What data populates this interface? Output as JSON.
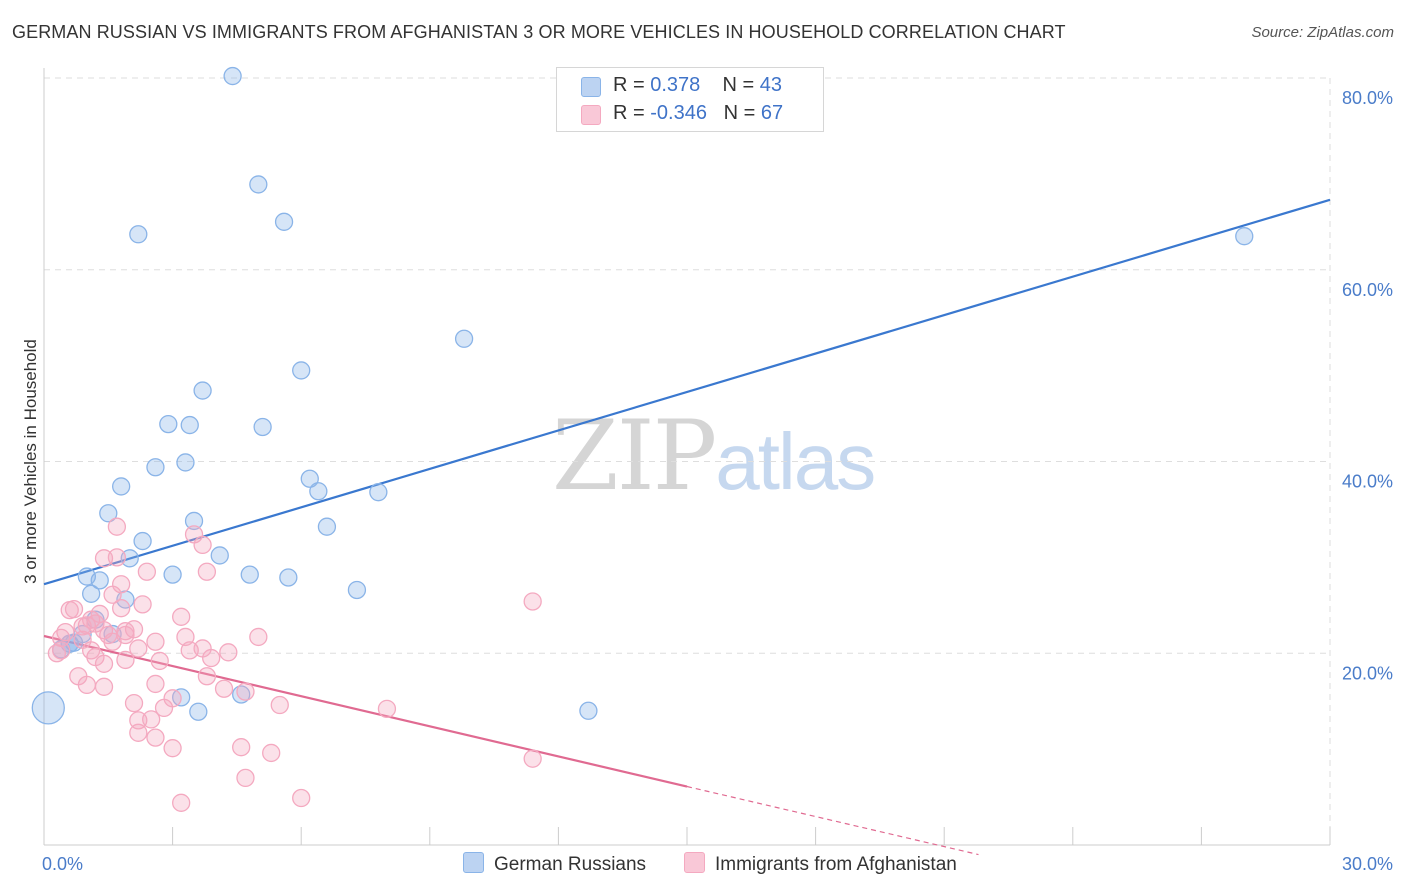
{
  "title": "GERMAN RUSSIAN VS IMMIGRANTS FROM AFGHANISTAN 3 OR MORE VEHICLES IN HOUSEHOLD CORRELATION CHART",
  "source": "Source: ZipAtlas.com",
  "watermark": {
    "zip": "ZIP",
    "atlas": "atlas"
  },
  "legend": {
    "rows": [
      {
        "r_label": "R = ",
        "r_value": "0.378",
        "n_label": "N = ",
        "n_value": "43"
      },
      {
        "r_label": "R = ",
        "r_value": "-0.346",
        "n_label": "N = ",
        "n_value": "67"
      }
    ]
  },
  "chart_data": {
    "type": "scatter",
    "title": "GERMAN RUSSIAN VS IMMIGRANTS FROM AFGHANISTAN 3 OR MORE VEHICLES IN HOUSEHOLD CORRELATION CHART",
    "xlabel": "",
    "ylabel": "3 or more Vehicles in Household",
    "xlim": [
      0,
      30
    ],
    "ylim": [
      0,
      80
    ],
    "x_tick_labels": [
      "0.0%",
      "30.0%"
    ],
    "y_ticks": [
      20,
      40,
      60,
      80
    ],
    "y_tick_labels": [
      "20.0%",
      "40.0%",
      "60.0%",
      "80.0%"
    ],
    "grid": true,
    "legend_position": "top-center",
    "series": [
      {
        "name": "German Russians",
        "color": "#8ab4e8",
        "line_color": "#3a78cf",
        "r": 0.378,
        "n": 43,
        "trend": {
          "x": [
            0,
            30
          ],
          "y": [
            27.2,
            67.3
          ]
        },
        "points": [
          [
            4.4,
            80.2
          ],
          [
            5.0,
            68.9
          ],
          [
            5.6,
            65.0
          ],
          [
            2.2,
            63.7
          ],
          [
            28.0,
            63.5
          ],
          [
            9.8,
            52.8
          ],
          [
            6.0,
            49.5
          ],
          [
            3.7,
            47.4
          ],
          [
            2.9,
            43.9
          ],
          [
            3.4,
            43.8
          ],
          [
            5.1,
            43.6
          ],
          [
            3.3,
            39.9
          ],
          [
            2.6,
            39.4
          ],
          [
            1.8,
            37.4
          ],
          [
            6.2,
            38.2
          ],
          [
            7.8,
            36.8
          ],
          [
            6.4,
            36.9
          ],
          [
            1.5,
            34.6
          ],
          [
            3.5,
            33.8
          ],
          [
            6.6,
            33.2
          ],
          [
            2.3,
            31.7
          ],
          [
            4.1,
            30.2
          ],
          [
            2.0,
            29.9
          ],
          [
            5.7,
            27.9
          ],
          [
            4.8,
            28.2
          ],
          [
            3.0,
            28.2
          ],
          [
            1.0,
            28.0
          ],
          [
            1.3,
            27.6
          ],
          [
            7.3,
            26.6
          ],
          [
            1.1,
            26.2
          ],
          [
            1.9,
            25.6
          ],
          [
            1.2,
            23.5
          ],
          [
            0.9,
            22.0
          ],
          [
            0.6,
            21.0
          ],
          [
            1.6,
            22.0
          ],
          [
            0.4,
            20.4
          ],
          [
            0.6,
            21.0
          ],
          [
            0.7,
            21.1
          ],
          [
            3.2,
            15.4
          ],
          [
            3.6,
            13.9
          ],
          [
            4.6,
            15.7
          ],
          [
            12.7,
            14.0
          ],
          [
            0.1,
            14.3
          ]
        ]
      },
      {
        "name": "Immigrants from Afghanistan",
        "color": "#f4a9c0",
        "line_color": "#e06a91",
        "r": -0.346,
        "n": 67,
        "trend": {
          "x": [
            0,
            15
          ],
          "y": [
            21.8,
            6.1
          ]
        },
        "trend_dashed": {
          "x": [
            15,
            21.8
          ],
          "y": [
            6.1,
            -1.0
          ]
        },
        "points": [
          [
            1.7,
            33.2
          ],
          [
            3.5,
            32.4
          ],
          [
            3.7,
            31.3
          ],
          [
            1.4,
            29.9
          ],
          [
            1.7,
            30.0
          ],
          [
            2.4,
            28.5
          ],
          [
            3.8,
            28.5
          ],
          [
            1.8,
            27.2
          ],
          [
            1.6,
            26.1
          ],
          [
            2.3,
            25.1
          ],
          [
            1.8,
            24.7
          ],
          [
            0.6,
            24.5
          ],
          [
            0.7,
            24.6
          ],
          [
            1.1,
            23.5
          ],
          [
            1.3,
            24.1
          ],
          [
            3.2,
            23.8
          ],
          [
            1.9,
            22.3
          ],
          [
            1.2,
            23.1
          ],
          [
            0.9,
            22.8
          ],
          [
            1.0,
            22.9
          ],
          [
            1.5,
            21.9
          ],
          [
            0.5,
            22.2
          ],
          [
            0.4,
            21.6
          ],
          [
            1.4,
            22.4
          ],
          [
            2.1,
            22.5
          ],
          [
            1.6,
            21.2
          ],
          [
            3.3,
            21.7
          ],
          [
            5.0,
            21.7
          ],
          [
            0.9,
            21.4
          ],
          [
            0.4,
            20.3
          ],
          [
            0.3,
            20.0
          ],
          [
            1.1,
            20.3
          ],
          [
            2.2,
            20.5
          ],
          [
            3.7,
            20.5
          ],
          [
            2.6,
            21.2
          ],
          [
            3.4,
            20.3
          ],
          [
            4.3,
            20.1
          ],
          [
            1.9,
            19.3
          ],
          [
            2.7,
            19.2
          ],
          [
            1.2,
            19.6
          ],
          [
            1.4,
            18.9
          ],
          [
            0.8,
            17.6
          ],
          [
            2.6,
            16.8
          ],
          [
            3.8,
            17.6
          ],
          [
            11.4,
            25.4
          ],
          [
            1.0,
            16.7
          ],
          [
            1.4,
            16.5
          ],
          [
            4.2,
            16.3
          ],
          [
            4.7,
            16.0
          ],
          [
            3.0,
            15.3
          ],
          [
            2.1,
            14.8
          ],
          [
            5.5,
            14.6
          ],
          [
            8.0,
            14.2
          ],
          [
            2.8,
            14.3
          ],
          [
            2.5,
            13.1
          ],
          [
            2.2,
            11.7
          ],
          [
            2.6,
            11.2
          ],
          [
            3.0,
            10.1
          ],
          [
            4.6,
            10.2
          ],
          [
            5.3,
            9.6
          ],
          [
            11.4,
            9.0
          ],
          [
            4.7,
            7.0
          ],
          [
            3.2,
            4.4
          ],
          [
            6.0,
            4.9
          ],
          [
            2.2,
            13.0
          ],
          [
            1.9,
            21.9
          ],
          [
            3.9,
            19.5
          ]
        ]
      }
    ]
  }
}
